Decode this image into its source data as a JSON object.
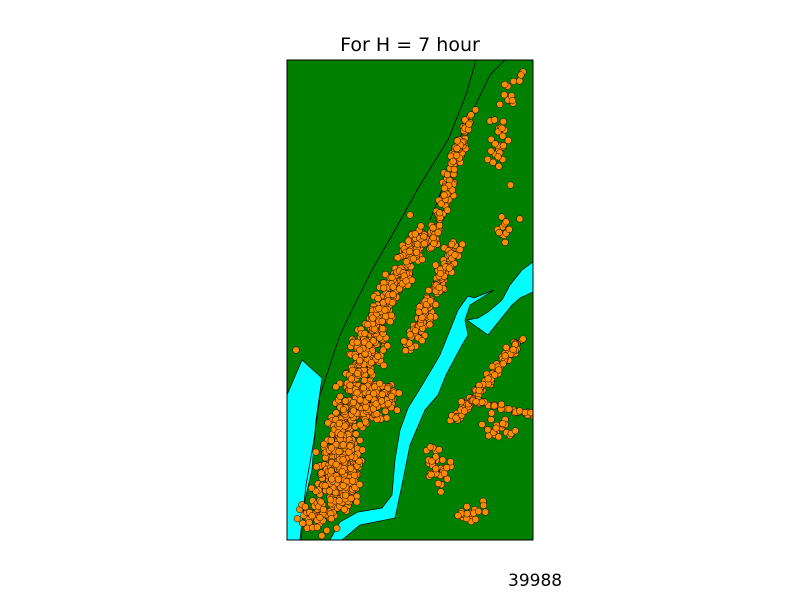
{
  "title": "For H = 7 hour",
  "count_text": "39988",
  "colors": {
    "land": "#008000",
    "water": "#00ffff",
    "points_fill": "#ff8c00",
    "points_edge": "#000000",
    "frame": "#000000",
    "background": "#ffffff"
  },
  "map": {
    "point_count": 39988,
    "point_marker": "circle"
  }
}
